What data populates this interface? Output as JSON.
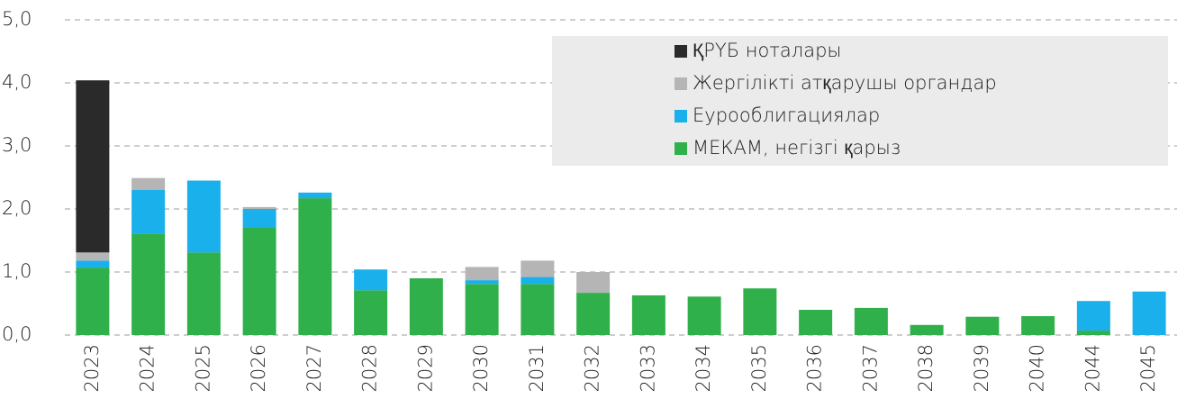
{
  "chart_data": {
    "type": "stacked_bar",
    "categories": [
      "2023",
      "2024",
      "2025",
      "2026",
      "2027",
      "2028",
      "2029",
      "2030",
      "2031",
      "2032",
      "2033",
      "2034",
      "2035",
      "2036",
      "2037",
      "2038",
      "2039",
      "2040",
      "2044",
      "2045"
    ],
    "series": [
      {
        "name": "МЕКАМ, негізгі қарыз",
        "color": "#2fb04a",
        "values": [
          1.07,
          1.61,
          1.31,
          1.7,
          2.17,
          0.71,
          0.9,
          0.81,
          0.81,
          0.67,
          0.63,
          0.61,
          0.74,
          0.4,
          0.43,
          0.16,
          0.29,
          0.3,
          0.07,
          0
        ]
      },
      {
        "name": "Еурооблигациялар",
        "color": "#1ab0ec",
        "values": [
          0.11,
          0.69,
          1.14,
          0.3,
          0.09,
          0.33,
          0,
          0.06,
          0.11,
          0,
          0,
          0,
          0,
          0,
          0,
          0,
          0,
          0,
          0.47,
          0.69
        ]
      },
      {
        "name": "Жергілікті атқарушы органдар",
        "color": "#b5b5b5",
        "values": [
          0.13,
          0.19,
          0,
          0.03,
          0,
          0,
          0,
          0.21,
          0.26,
          0.33,
          0,
          0,
          0,
          0,
          0,
          0,
          0,
          0,
          0,
          0
        ]
      },
      {
        "name": "ҚРҮБ ноталары",
        "color": "#2a2a2a",
        "values": [
          2.73,
          0,
          0,
          0,
          0,
          0,
          0,
          0,
          0,
          0,
          0,
          0,
          0,
          0,
          0,
          0,
          0,
          0,
          0,
          0
        ]
      }
    ],
    "ylim": [
      0,
      5
    ],
    "yticks": [
      {
        "value": 0,
        "label": "0,0"
      },
      {
        "value": 1,
        "label": "1,0"
      },
      {
        "value": 2,
        "label": "2,0"
      },
      {
        "value": 3,
        "label": "3,0"
      },
      {
        "value": 4,
        "label": "4,0"
      },
      {
        "value": 5,
        "label": "5,0"
      }
    ],
    "grid": true,
    "legend": "upper right"
  }
}
